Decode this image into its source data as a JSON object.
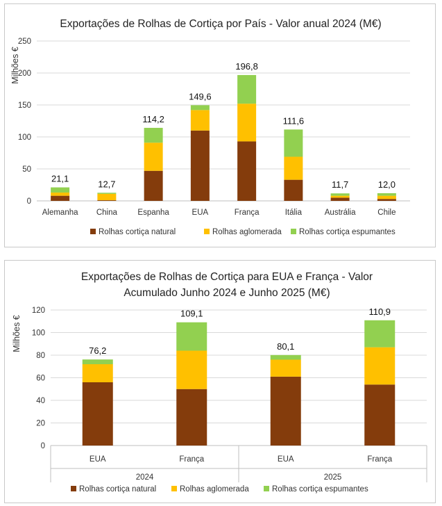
{
  "colors": {
    "natural": "#843C0C",
    "aglomerada": "#FFC000",
    "espumantes": "#92D050"
  },
  "chart_data": [
    {
      "type": "bar",
      "stacked": true,
      "title": "Exportações de Rolhas de Cortiça por País - Valor anual 2024 (M€)",
      "ylabel": "Milhões €",
      "ylim": [
        0,
        250
      ],
      "yticks": [
        "0",
        "50",
        "100",
        "150",
        "200",
        "250"
      ],
      "grid": true,
      "legend_position": "bottom",
      "categories": [
        "Alemanha",
        "China",
        "Espanha",
        "EUA",
        "França",
        "Itália",
        "Austrália",
        "Chile"
      ],
      "series": [
        {
          "name": "Rolhas cortiça natural",
          "values": [
            8,
            1,
            47,
            110,
            93,
            33,
            5,
            3
          ]
        },
        {
          "name": "Rolhas aglomerada",
          "values": [
            5,
            10,
            44,
            32,
            59,
            36,
            3,
            5
          ]
        },
        {
          "name": "Rolhas cortiça espumantes",
          "values": [
            8.1,
            1.7,
            23.2,
            7.6,
            44.8,
            42.6,
            3.7,
            4.0
          ]
        }
      ],
      "totals": [
        "21,1",
        "12,7",
        "114,2",
        "149,6",
        "196,8",
        "111,6",
        "11,7",
        "12,0"
      ],
      "total_values": [
        21.1,
        12.7,
        114.2,
        149.6,
        196.8,
        111.6,
        11.7,
        12.0
      ]
    },
    {
      "type": "bar",
      "stacked": true,
      "title": "Exportações de Rolhas de Cortiça para EUA e França - Valor Acumulado Junho 2024 e Junho 2025 (M€)",
      "title_lines": [
        "Exportações de Rolhas de Cortiça para EUA e França - Valor",
        "Acumulado Junho 2024 e Junho 2025 (M€)"
      ],
      "ylabel": "Milhões €",
      "ylim": [
        0,
        120
      ],
      "yticks": [
        "0",
        "20",
        "40",
        "60",
        "80",
        "100",
        "120"
      ],
      "grid": true,
      "legend_position": "bottom",
      "groups": [
        "2024",
        "2025"
      ],
      "categories": [
        "EUA",
        "França",
        "EUA",
        "França"
      ],
      "series": [
        {
          "name": "Rolhas cortiça natural",
          "values": [
            56,
            50,
            61,
            54
          ]
        },
        {
          "name": "Rolhas aglomerada",
          "values": [
            16,
            34,
            15,
            33
          ]
        },
        {
          "name": "Rolhas cortiça espumantes",
          "values": [
            4.2,
            25.1,
            4.1,
            23.9
          ]
        }
      ],
      "totals": [
        "76,2",
        "109,1",
        "80,1",
        "110,9"
      ],
      "total_values": [
        76.2,
        109.1,
        80.1,
        110.9
      ]
    }
  ]
}
